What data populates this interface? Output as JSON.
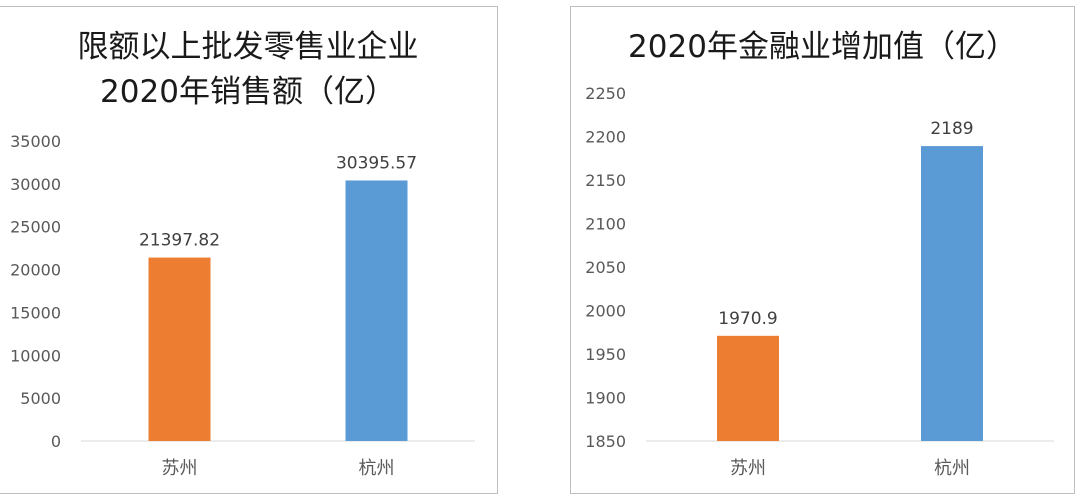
{
  "chart_data": [
    {
      "type": "bar",
      "title_lines": [
        "限额以上批发零售业企业",
        "2020年销售额（亿）"
      ],
      "categories": [
        "苏州",
        "杭州"
      ],
      "values": [
        21397.82,
        30395.57
      ],
      "value_labels": [
        "21397.82",
        "30395.57"
      ],
      "colors": [
        "#ED7D31",
        "#5B9BD5"
      ],
      "ylim": [
        0,
        35000
      ],
      "yticks": [
        "0",
        "5000",
        "10000",
        "15000",
        "20000",
        "25000",
        "30000",
        "35000"
      ],
      "grid": false,
      "legend": "none"
    },
    {
      "type": "bar",
      "title_lines": [
        "2020年金融业增加值（亿）"
      ],
      "categories": [
        "苏州",
        "杭州"
      ],
      "values": [
        1970.9,
        2189
      ],
      "value_labels": [
        "1970.9",
        "2189"
      ],
      "colors": [
        "#ED7D31",
        "#5B9BD5"
      ],
      "ylim": [
        1850,
        2250
      ],
      "yticks": [
        "1850",
        "1900",
        "1950",
        "2000",
        "2050",
        "2100",
        "2150",
        "2200",
        "2250"
      ],
      "grid": false,
      "legend": "none"
    }
  ]
}
